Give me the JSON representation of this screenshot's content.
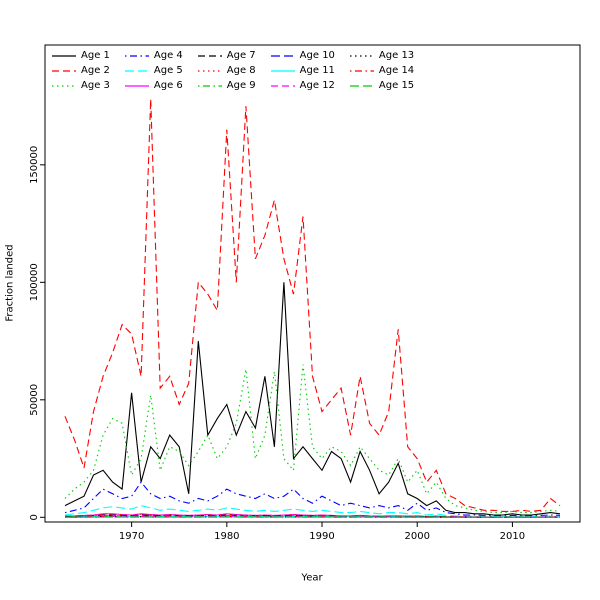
{
  "figure": {
    "xlabel": "Year",
    "ylabel": "Fraction landed"
  },
  "chart_data": {
    "type": "line",
    "title": "",
    "xlabel": "Year",
    "ylabel": "Fraction landed",
    "xlim": [
      1961,
      2017
    ],
    "ylim": [
      0,
      201000
    ],
    "grid": false,
    "legend_position": "top-left",
    "x_ticks": [
      1970,
      1980,
      1990,
      2000,
      2010
    ],
    "x_tick_labels": [
      "1970",
      "1980",
      "1990",
      "2000",
      "2010"
    ],
    "y_ticks": [
      0,
      50000,
      100000,
      150000
    ],
    "y_tick_labels": [
      "0",
      "50000",
      "100000",
      "150000"
    ],
    "x": [
      1963,
      1964,
      1965,
      1966,
      1967,
      1968,
      1969,
      1970,
      1971,
      1972,
      1973,
      1974,
      1975,
      1976,
      1977,
      1978,
      1979,
      1980,
      1981,
      1982,
      1983,
      1984,
      1985,
      1986,
      1987,
      1988,
      1989,
      1990,
      1991,
      1992,
      1993,
      1994,
      1995,
      1996,
      1997,
      1998,
      1999,
      2000,
      2001,
      2002,
      2003,
      2004,
      2005,
      2006,
      2007,
      2008,
      2009,
      2010,
      2011,
      2012,
      2013,
      2014,
      2015
    ],
    "series": [
      {
        "name": "Age 1",
        "color": "#000000",
        "dash": "solid",
        "values": [
          5000,
          7000,
          9000,
          18000,
          20000,
          15000,
          12000,
          53000,
          15000,
          30000,
          25000,
          35000,
          30000,
          10000,
          75000,
          35000,
          42000,
          48000,
          35000,
          45000,
          38000,
          60000,
          30000,
          100000,
          25000,
          30000,
          25000,
          20000,
          28000,
          25000,
          15000,
          28000,
          20000,
          10000,
          15000,
          23000,
          10000,
          8000,
          5000,
          7000,
          3000,
          2000,
          2000,
          1500,
          1500,
          1000,
          1000,
          1500,
          1000,
          1000,
          1500,
          2000,
          1500
        ]
      },
      {
        "name": "Age 2",
        "color": "#ff0000",
        "dash": "dashed",
        "values": [
          43000,
          33000,
          21000,
          45000,
          60000,
          70000,
          82000,
          78000,
          60000,
          178000,
          55000,
          60000,
          48000,
          57000,
          100000,
          95000,
          88000,
          165000,
          100000,
          175000,
          110000,
          120000,
          135000,
          110000,
          95000,
          128000,
          60000,
          45000,
          50000,
          55000,
          35000,
          60000,
          40000,
          35000,
          45000,
          80000,
          30000,
          25000,
          15000,
          20000,
          10000,
          8000,
          5000,
          4000,
          3000,
          3000,
          2500,
          2500,
          3000,
          2500,
          3000,
          8000,
          5000
        ]
      },
      {
        "name": "Age 3",
        "color": "#00cd00",
        "dash": "dotted",
        "values": [
          8000,
          12000,
          15000,
          20000,
          35000,
          42000,
          40000,
          18000,
          25000,
          52000,
          20000,
          30000,
          28000,
          22000,
          28000,
          35000,
          25000,
          30000,
          40000,
          63000,
          25000,
          35000,
          62000,
          25000,
          20000,
          65000,
          30000,
          25000,
          30000,
          28000,
          22000,
          30000,
          25000,
          20000,
          18000,
          25000,
          15000,
          20000,
          10000,
          15000,
          8000,
          5000,
          4000,
          3000,
          2500,
          2000,
          2000,
          2500,
          2000,
          2000,
          2500,
          3000,
          2500
        ]
      },
      {
        "name": "Age 4",
        "color": "#0000ff",
        "dash": "dotdash",
        "values": [
          2000,
          3000,
          4000,
          8000,
          12000,
          10000,
          8000,
          9000,
          15000,
          10000,
          8000,
          9000,
          7000,
          6000,
          8000,
          7000,
          9000,
          12000,
          10000,
          9000,
          8000,
          10000,
          8000,
          9000,
          12000,
          8000,
          6000,
          9000,
          7000,
          5000,
          6000,
          5000,
          4000,
          5000,
          4000,
          5000,
          3000,
          6000,
          3000,
          4000,
          2000,
          1500,
          1000,
          1000,
          800,
          800,
          700,
          800,
          700,
          700,
          800,
          1000,
          800
        ]
      },
      {
        "name": "Age 5",
        "color": "#00ffff",
        "dash": "longdash",
        "values": [
          1000,
          1500,
          2000,
          3000,
          4000,
          4500,
          4000,
          3500,
          5000,
          4000,
          3000,
          3500,
          3000,
          2500,
          3000,
          3500,
          3000,
          4000,
          3500,
          3000,
          2500,
          3000,
          2500,
          3000,
          3500,
          3000,
          2500,
          3000,
          2500,
          2000,
          2000,
          2500,
          2000,
          1500,
          2000,
          2000,
          1500,
          2000,
          1000,
          1500,
          800,
          600,
          500,
          400,
          400,
          300,
          300,
          400,
          300,
          300,
          400,
          500,
          400
        ]
      },
      {
        "name": "Age 6",
        "color": "#ff00ff",
        "dash": "solid",
        "values": [
          500,
          600,
          800,
          1000,
          1500,
          1500,
          1200,
          1000,
          1500,
          1200,
          1000,
          1200,
          1000,
          800,
          1000,
          1200,
          1000,
          1500,
          1200,
          1000,
          800,
          1000,
          800,
          1000,
          1200,
          1000,
          800,
          1000,
          800,
          600,
          600,
          800,
          600,
          500,
          600,
          600,
          500,
          600,
          400,
          500,
          300,
          250,
          200,
          150,
          150,
          120,
          120,
          150,
          120,
          120,
          150,
          200,
          150
        ]
      },
      {
        "name": "Age 7",
        "color": "#000000",
        "dash": "dashed",
        "values": [
          300,
          400,
          500,
          700,
          1000,
          1000,
          800,
          700,
          1000,
          800,
          700,
          800,
          700,
          600,
          700,
          800,
          700,
          1000,
          800,
          700,
          600,
          700,
          600,
          700,
          800,
          700,
          600,
          700,
          600,
          400,
          400,
          500,
          400,
          300,
          400,
          400,
          300,
          400,
          250,
          300,
          200,
          150,
          120,
          100,
          100,
          80,
          80,
          100,
          80,
          80,
          100,
          120,
          100
        ]
      },
      {
        "name": "Age 8",
        "color": "#ff0000",
        "dash": "dotted",
        "values": [
          400,
          500,
          700,
          900,
          1300,
          1300,
          1100,
          900,
          1300,
          1100,
          900,
          1100,
          900,
          800,
          900,
          1100,
          900,
          1300,
          1100,
          900,
          800,
          900,
          800,
          900,
          1100,
          900,
          800,
          900,
          800,
          500,
          500,
          700,
          500,
          400,
          500,
          500,
          400,
          500,
          300,
          400,
          250,
          200,
          150,
          130,
          130,
          100,
          100,
          130,
          100,
          100,
          130,
          150,
          130
        ]
      },
      {
        "name": "Age 9",
        "color": "#00cd00",
        "dash": "dotdash",
        "values": [
          200,
          300,
          400,
          500,
          700,
          700,
          600,
          500,
          700,
          600,
          500,
          600,
          500,
          400,
          500,
          600,
          500,
          700,
          600,
          500,
          400,
          500,
          400,
          500,
          600,
          500,
          400,
          500,
          400,
          300,
          300,
          400,
          300,
          250,
          300,
          300,
          250,
          300,
          200,
          250,
          150,
          120,
          100,
          80,
          80,
          70,
          70,
          80,
          70,
          70,
          80,
          100,
          80
        ]
      },
      {
        "name": "Age 10",
        "color": "#0000ff",
        "dash": "longdash",
        "values": [
          150,
          200,
          300,
          400,
          500,
          500,
          450,
          400,
          500,
          450,
          400,
          450,
          400,
          350,
          400,
          450,
          400,
          500,
          450,
          400,
          350,
          400,
          350,
          400,
          450,
          400,
          350,
          400,
          350,
          250,
          250,
          300,
          250,
          200,
          250,
          250,
          200,
          250,
          150,
          200,
          120,
          100,
          80,
          70,
          70,
          60,
          60,
          70,
          60,
          60,
          70,
          80,
          70
        ]
      },
      {
        "name": "Age 11",
        "color": "#00ffff",
        "dash": "solid",
        "values": [
          100,
          150,
          200,
          300,
          400,
          400,
          350,
          300,
          400,
          350,
          300,
          350,
          300,
          250,
          300,
          350,
          300,
          400,
          350,
          300,
          250,
          300,
          250,
          300,
          350,
          300,
          250,
          300,
          250,
          200,
          200,
          250,
          200,
          150,
          200,
          200,
          150,
          200,
          120,
          150,
          100,
          80,
          60,
          50,
          50,
          40,
          40,
          50,
          40,
          40,
          50,
          60,
          50
        ]
      },
      {
        "name": "Age 12",
        "color": "#ff00ff",
        "dash": "dashed",
        "values": [
          80,
          100,
          150,
          200,
          300,
          300,
          250,
          200,
          300,
          250,
          200,
          250,
          200,
          180,
          200,
          250,
          200,
          300,
          250,
          200,
          180,
          200,
          180,
          200,
          250,
          200,
          180,
          200,
          180,
          150,
          150,
          180,
          150,
          120,
          150,
          150,
          120,
          150,
          100,
          120,
          80,
          60,
          50,
          40,
          40,
          30,
          30,
          40,
          30,
          30,
          40,
          50,
          40
        ]
      },
      {
        "name": "Age 13",
        "color": "#000000",
        "dash": "dotted",
        "values": [
          60,
          80,
          100,
          150,
          200,
          200,
          180,
          150,
          200,
          180,
          150,
          180,
          150,
          120,
          150,
          180,
          150,
          200,
          180,
          150,
          120,
          150,
          120,
          150,
          180,
          150,
          120,
          150,
          120,
          100,
          100,
          120,
          100,
          80,
          100,
          100,
          80,
          100,
          70,
          80,
          60,
          50,
          40,
          30,
          30,
          25,
          25,
          30,
          25,
          25,
          30,
          40,
          30
        ]
      },
      {
        "name": "Age 14",
        "color": "#ff0000",
        "dash": "dotdash",
        "values": [
          40,
          60,
          80,
          100,
          150,
          150,
          120,
          100,
          150,
          120,
          100,
          120,
          100,
          90,
          100,
          120,
          100,
          150,
          120,
          100,
          90,
          100,
          90,
          100,
          120,
          100,
          90,
          100,
          90,
          70,
          70,
          90,
          70,
          60,
          70,
          70,
          60,
          70,
          50,
          60,
          40,
          30,
          25,
          20,
          20,
          18,
          18,
          20,
          18,
          18,
          20,
          25,
          20
        ]
      },
      {
        "name": "Age 15",
        "color": "#00cd00",
        "dash": "longdash",
        "values": [
          30,
          40,
          60,
          80,
          100,
          100,
          90,
          80,
          100,
          90,
          80,
          90,
          80,
          70,
          80,
          90,
          80,
          100,
          90,
          80,
          70,
          80,
          70,
          80,
          90,
          80,
          70,
          80,
          70,
          50,
          50,
          70,
          50,
          40,
          50,
          50,
          40,
          50,
          35,
          40,
          30,
          25,
          20,
          15,
          15,
          12,
          12,
          15,
          12,
          12,
          15,
          20,
          15
        ]
      }
    ]
  }
}
